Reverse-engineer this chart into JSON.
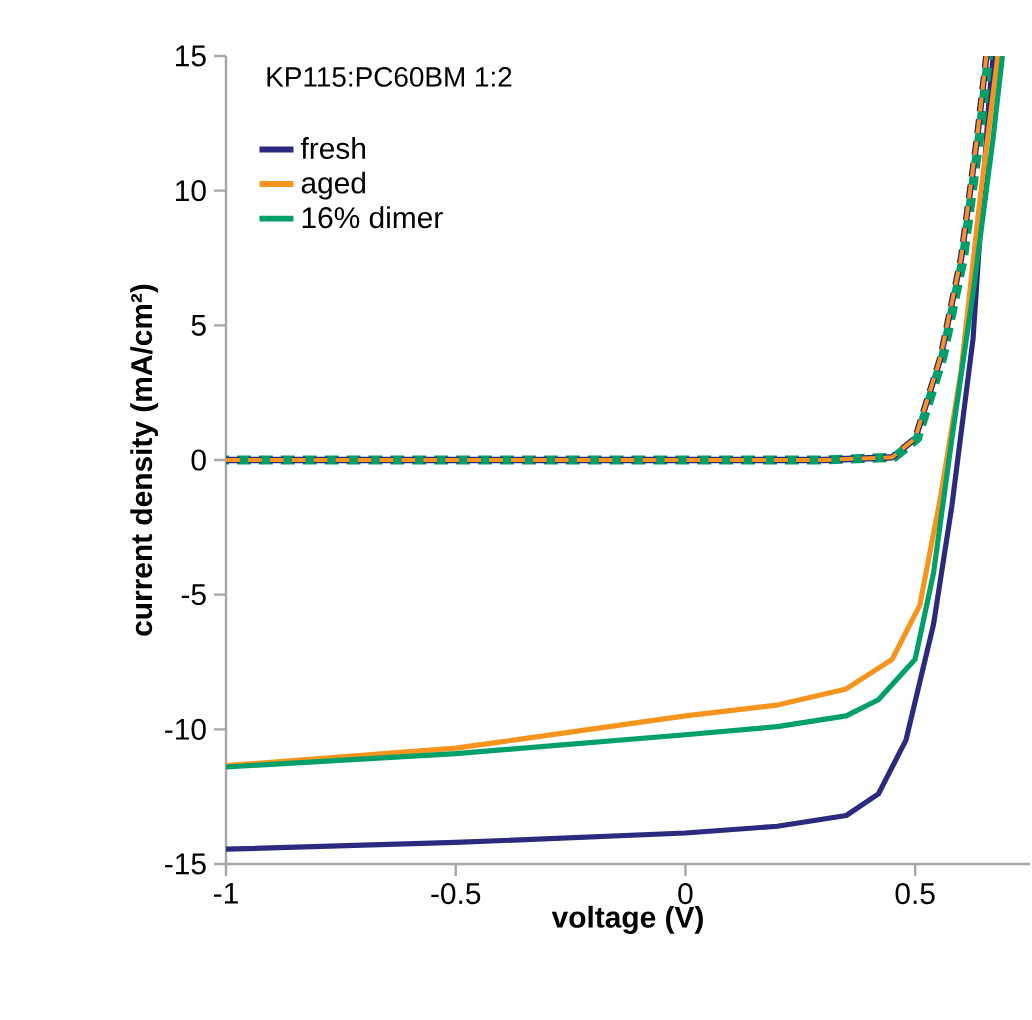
{
  "chart_data": {
    "type": "line",
    "xlabel": "voltage (V)",
    "ylabel": "current density (mA/cm²)",
    "annotations": [
      "KP115:PC60BM 1:2"
    ],
    "xlim": [
      -1,
      0.75
    ],
    "ylim": [
      -15,
      15
    ],
    "xticks": [
      -1,
      -0.5,
      0,
      0.5
    ],
    "yticks": [
      -15,
      -10,
      -5,
      0,
      5,
      10,
      15
    ],
    "legend": "top left",
    "marker": "none",
    "line_style": "solid",
    "series": [
      {
        "name": "fresh",
        "color": "#2b2a7f",
        "x": [
          -1,
          -0.5,
          0,
          0.2,
          0.35,
          0.42,
          0.48,
          0.54,
          0.58,
          0.626,
          0.66,
          0.67
        ],
        "values": [
          -14.45,
          -14.2,
          -13.85,
          -13.6,
          -13.2,
          -12.4,
          -10.4,
          -6.1,
          -1.7,
          4.5,
          13.2,
          15
        ]
      },
      {
        "name": "aged",
        "color": "#f7941d",
        "x": [
          -1,
          -0.5,
          0,
          0.2,
          0.35,
          0.45,
          0.51,
          0.555,
          0.6,
          0.64,
          0.68
        ],
        "values": [
          -11.35,
          -10.7,
          -9.5,
          -9.1,
          -8.5,
          -7.4,
          -5.4,
          -1.4,
          3.3,
          9.5,
          15
        ]
      },
      {
        "name": "16% dimer",
        "color": "#00a06a",
        "x": [
          -1,
          -0.5,
          0,
          0.2,
          0.35,
          0.42,
          0.5,
          0.54,
          0.58,
          0.626,
          0.67,
          0.69
        ],
        "values": [
          -11.4,
          -10.9,
          -10.2,
          -9.9,
          -9.5,
          -8.9,
          -7.4,
          -4.2,
          0.8,
          6.2,
          12,
          15
        ]
      },
      {
        "color": "#00a06a",
        "line_style": "dashed",
        "x": [
          -1,
          -0.5,
          0,
          0.3,
          0.455,
          0.505,
          0.56,
          0.605,
          0.64,
          0.66
        ],
        "values": [
          0,
          0,
          0,
          0,
          0.1,
          0.8,
          3.8,
          7.5,
          12,
          15
        ]
      },
      {
        "color": "#2b2a7f",
        "line_style": "dashed",
        "x": [
          -1,
          -0.5,
          0,
          0.3,
          0.45,
          0.5,
          0.555,
          0.6,
          0.635,
          0.655
        ],
        "values": [
          0,
          0,
          0,
          0,
          0.1,
          0.8,
          3.8,
          7.5,
          12,
          15
        ]
      },
      {
        "color": "#f7941d",
        "line_style": "dashed",
        "x": [
          -1,
          -0.5,
          0,
          0.3,
          0.45,
          0.5,
          0.555,
          0.6,
          0.635,
          0.655
        ],
        "values": [
          0,
          0,
          0,
          0,
          0.1,
          0.8,
          3.8,
          7.5,
          12,
          15
        ]
      }
    ]
  }
}
